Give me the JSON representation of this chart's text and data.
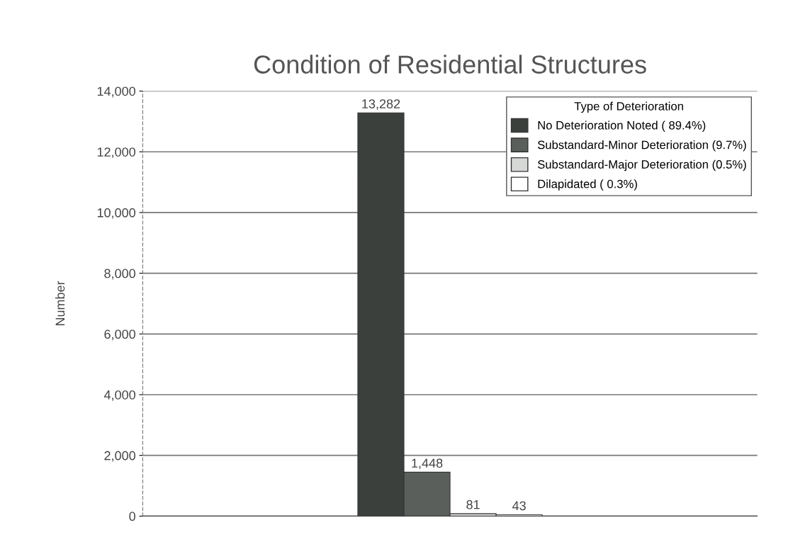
{
  "chart_data": {
    "type": "bar",
    "title": "Condition of Residential Structures",
    "ylabel": "Number",
    "legend_title": "Type of Deterioration",
    "categories": [
      null
    ],
    "series": [
      {
        "name": "No Deterioration Noted ( 89.4%)",
        "color": "#3b403d",
        "values": [
          13282
        ],
        "value_labels": [
          "13,282"
        ]
      },
      {
        "name": "Substandard-Minor Deterioration (9.7%)",
        "color": "#5a5f5b",
        "values": [
          1448
        ],
        "value_labels": [
          "1,448"
        ]
      },
      {
        "name": "Substandard-Major Deterioration (0.5%)",
        "color": "#d6d8d6",
        "values": [
          81
        ],
        "value_labels": [
          "81"
        ]
      },
      {
        "name": "Dilapidated ( 0.3%)",
        "color": "#ffffff",
        "values": [
          43
        ],
        "value_labels": [
          "43"
        ]
      }
    ],
    "ylim": [
      0,
      14000
    ],
    "yticks": [
      {
        "value": 0,
        "label": "0"
      },
      {
        "value": 2000,
        "label": "2,000"
      },
      {
        "value": 4000,
        "label": "4,000"
      },
      {
        "value": 6000,
        "label": "6,000"
      },
      {
        "value": 8000,
        "label": "8,000"
      },
      {
        "value": 10000,
        "label": "10,000"
      },
      {
        "value": 12000,
        "label": "12,000"
      },
      {
        "value": 14000,
        "label": "14,000"
      }
    ],
    "grid": "y",
    "legend": "top right"
  }
}
